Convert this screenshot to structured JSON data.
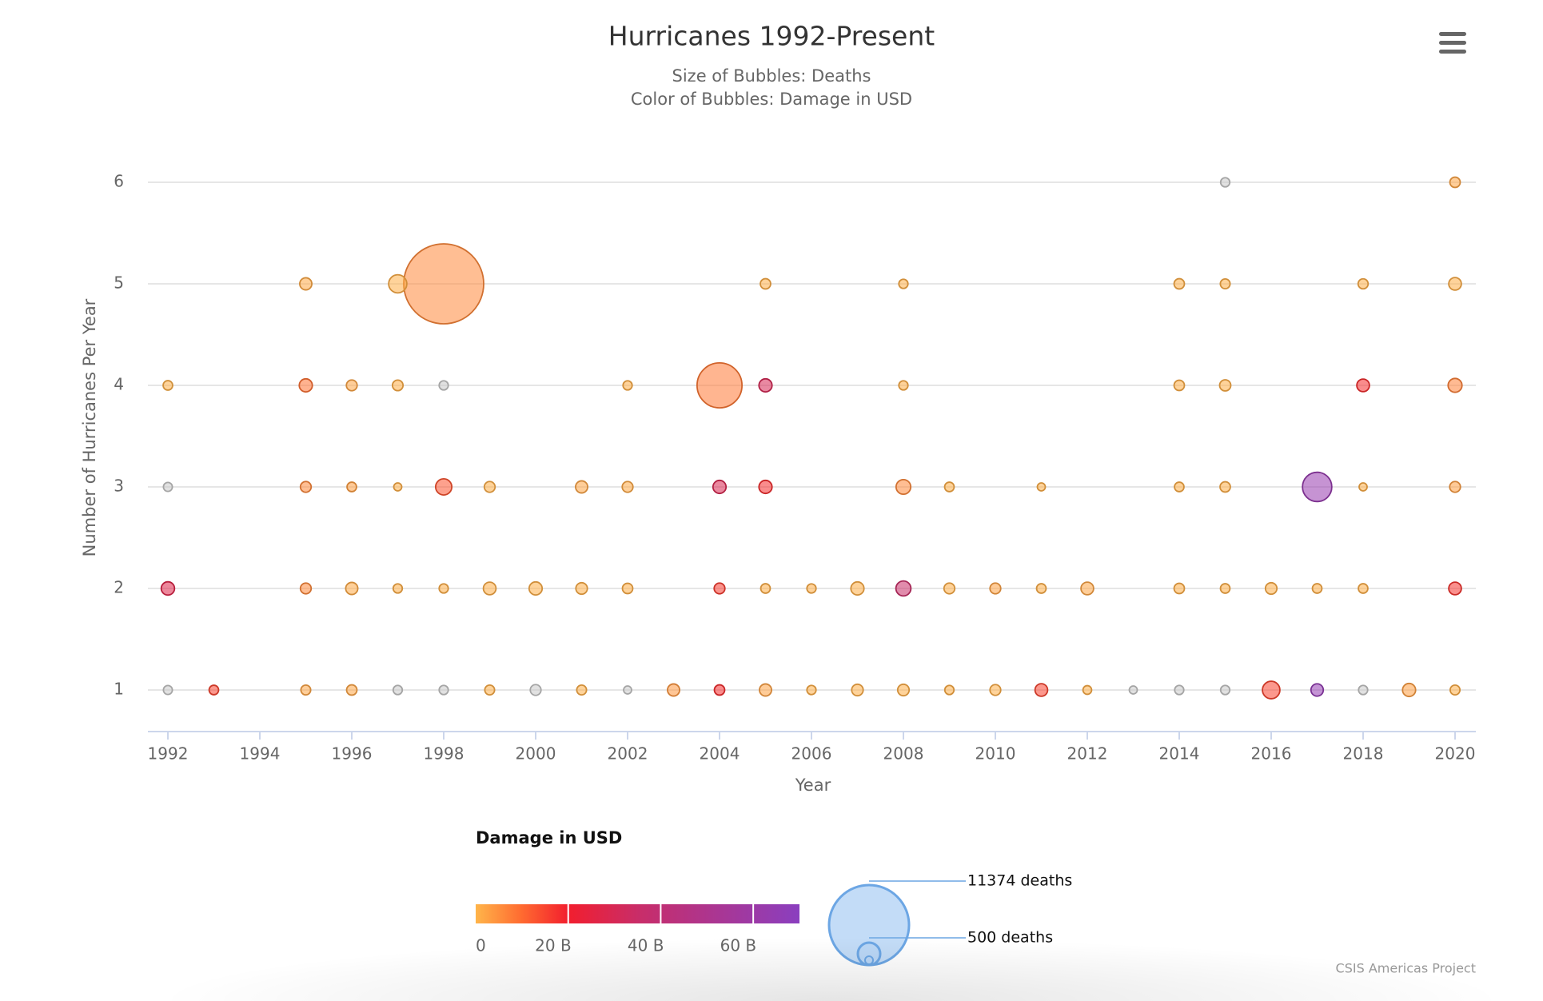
{
  "chart_data": {
    "type": "scatter",
    "title": "Hurricanes 1992-Present",
    "subtitle_lines": [
      "Size of Bubbles: Deaths",
      "Color of Bubbles: Damage in USD"
    ],
    "xlabel": "Year",
    "ylabel": "Number of Hurricanes Per Year",
    "xlim": [
      1992,
      2020
    ],
    "ylim": [
      0.6,
      6.2
    ],
    "x_ticks": [
      1992,
      1994,
      1996,
      1998,
      2000,
      2002,
      2004,
      2006,
      2008,
      2010,
      2012,
      2014,
      2016,
      2018,
      2020
    ],
    "y_ticks": [
      1,
      2,
      3,
      4,
      5,
      6
    ],
    "grid": true,
    "size_encodes": "Deaths",
    "color_encodes": "Damage in USD",
    "points": [
      {
        "x": 1992,
        "y": 1,
        "deaths": 5,
        "damage": null
      },
      {
        "x": 1992,
        "y": 2,
        "deaths": 65,
        "damage": 27
      },
      {
        "x": 1992,
        "y": 3,
        "deaths": 5,
        "damage": null
      },
      {
        "x": 1992,
        "y": 4,
        "deaths": 8,
        "damage": 0.5
      },
      {
        "x": 1993,
        "y": 1,
        "deaths": 8,
        "damage": 15
      },
      {
        "x": 1995,
        "y": 1,
        "deaths": 10,
        "damage": 2
      },
      {
        "x": 1995,
        "y": 2,
        "deaths": 20,
        "damage": 6
      },
      {
        "x": 1995,
        "y": 3,
        "deaths": 20,
        "damage": 6
      },
      {
        "x": 1995,
        "y": 4,
        "deaths": 60,
        "damage": 9
      },
      {
        "x": 1995,
        "y": 5,
        "deaths": 40,
        "damage": 1.5
      },
      {
        "x": 1996,
        "y": 1,
        "deaths": 15,
        "damage": 2
      },
      {
        "x": 1996,
        "y": 2,
        "deaths": 40,
        "damage": 1.5
      },
      {
        "x": 1996,
        "y": 3,
        "deaths": 8,
        "damage": 3
      },
      {
        "x": 1996,
        "y": 4,
        "deaths": 20,
        "damage": 2
      },
      {
        "x": 1997,
        "y": 1,
        "deaths": 6,
        "damage": null
      },
      {
        "x": 1997,
        "y": 2,
        "deaths": 6,
        "damage": 1
      },
      {
        "x": 1997,
        "y": 3,
        "deaths": 3,
        "damage": 1
      },
      {
        "x": 1997,
        "y": 4,
        "deaths": 18,
        "damage": 1
      },
      {
        "x": 1997,
        "y": 5,
        "deaths": 230,
        "damage": 1
      },
      {
        "x": 1998,
        "y": 1,
        "deaths": 6,
        "damage": null
      },
      {
        "x": 1998,
        "y": 2,
        "deaths": 6,
        "damage": 1
      },
      {
        "x": 1998,
        "y": 3,
        "deaths": 150,
        "damage": 13
      },
      {
        "x": 1998,
        "y": 4,
        "deaths": 6,
        "damage": null
      },
      {
        "x": 1998,
        "y": 5,
        "deaths": 11374,
        "damage": 6
      },
      {
        "x": 1999,
        "y": 1,
        "deaths": 10,
        "damage": 1
      },
      {
        "x": 1999,
        "y": 2,
        "deaths": 50,
        "damage": 1
      },
      {
        "x": 1999,
        "y": 3,
        "deaths": 20,
        "damage": 1
      },
      {
        "x": 2000,
        "y": 1,
        "deaths": 20,
        "damage": null
      },
      {
        "x": 2000,
        "y": 2,
        "deaths": 60,
        "damage": 1
      },
      {
        "x": 2001,
        "y": 1,
        "deaths": 10,
        "damage": 1
      },
      {
        "x": 2001,
        "y": 2,
        "deaths": 30,
        "damage": 1
      },
      {
        "x": 2001,
        "y": 3,
        "deaths": 40,
        "damage": 2
      },
      {
        "x": 2002,
        "y": 1,
        "deaths": 3,
        "damage": null
      },
      {
        "x": 2002,
        "y": 2,
        "deaths": 15,
        "damage": 1
      },
      {
        "x": 2002,
        "y": 3,
        "deaths": 20,
        "damage": 1.5
      },
      {
        "x": 2002,
        "y": 4,
        "deaths": 6,
        "damage": 1
      },
      {
        "x": 2003,
        "y": 1,
        "deaths": 40,
        "damage": 4
      },
      {
        "x": 2004,
        "y": 1,
        "deaths": 15,
        "damage": 18
      },
      {
        "x": 2004,
        "y": 2,
        "deaths": 20,
        "damage": 16
      },
      {
        "x": 2004,
        "y": 3,
        "deaths": 60,
        "damage": 29
      },
      {
        "x": 2004,
        "y": 4,
        "deaths": 3000,
        "damage": 8
      },
      {
        "x": 2005,
        "y": 1,
        "deaths": 40,
        "damage": 2.5
      },
      {
        "x": 2005,
        "y": 2,
        "deaths": 8,
        "damage": 1
      },
      {
        "x": 2005,
        "y": 3,
        "deaths": 60,
        "damage": 18
      },
      {
        "x": 2005,
        "y": 4,
        "deaths": 60,
        "damage": 30
      },
      {
        "x": 2005,
        "y": 5,
        "deaths": 15,
        "damage": 1
      },
      {
        "x": 2006,
        "y": 1,
        "deaths": 6,
        "damage": 1
      },
      {
        "x": 2006,
        "y": 2,
        "deaths": 6,
        "damage": 1
      },
      {
        "x": 2007,
        "y": 1,
        "deaths": 30,
        "damage": 1
      },
      {
        "x": 2007,
        "y": 2,
        "deaths": 60,
        "damage": 1
      },
      {
        "x": 2008,
        "y": 1,
        "deaths": 30,
        "damage": 1
      },
      {
        "x": 2008,
        "y": 2,
        "deaths": 110,
        "damage": 35
      },
      {
        "x": 2008,
        "y": 3,
        "deaths": 100,
        "damage": 6
      },
      {
        "x": 2008,
        "y": 4,
        "deaths": 6,
        "damage": 1
      },
      {
        "x": 2008,
        "y": 5,
        "deaths": 6,
        "damage": 1
      },
      {
        "x": 2009,
        "y": 1,
        "deaths": 6,
        "damage": 1
      },
      {
        "x": 2009,
        "y": 2,
        "deaths": 20,
        "damage": 1
      },
      {
        "x": 2009,
        "y": 3,
        "deaths": 8,
        "damage": 1
      },
      {
        "x": 2010,
        "y": 1,
        "deaths": 20,
        "damage": 1
      },
      {
        "x": 2010,
        "y": 2,
        "deaths": 20,
        "damage": 2.5
      },
      {
        "x": 2011,
        "y": 1,
        "deaths": 50,
        "damage": 15
      },
      {
        "x": 2011,
        "y": 2,
        "deaths": 8,
        "damage": 1
      },
      {
        "x": 2011,
        "y": 3,
        "deaths": 3,
        "damage": 1
      },
      {
        "x": 2012,
        "y": 1,
        "deaths": 4,
        "damage": 1
      },
      {
        "x": 2012,
        "y": 2,
        "deaths": 50,
        "damage": 2
      },
      {
        "x": 2013,
        "y": 1,
        "deaths": 3,
        "damage": null
      },
      {
        "x": 2014,
        "y": 1,
        "deaths": 6,
        "damage": null
      },
      {
        "x": 2014,
        "y": 2,
        "deaths": 15,
        "damage": 1
      },
      {
        "x": 2014,
        "y": 3,
        "deaths": 8,
        "damage": 1
      },
      {
        "x": 2014,
        "y": 4,
        "deaths": 15,
        "damage": 1
      },
      {
        "x": 2014,
        "y": 5,
        "deaths": 15,
        "damage": 1
      },
      {
        "x": 2015,
        "y": 1,
        "deaths": 6,
        "damage": null
      },
      {
        "x": 2015,
        "y": 2,
        "deaths": 8,
        "damage": 1
      },
      {
        "x": 2015,
        "y": 3,
        "deaths": 15,
        "damage": 1
      },
      {
        "x": 2015,
        "y": 4,
        "deaths": 25,
        "damage": 1
      },
      {
        "x": 2015,
        "y": 5,
        "deaths": 10,
        "damage": 1
      },
      {
        "x": 2015,
        "y": 6,
        "deaths": 6,
        "damage": null
      },
      {
        "x": 2016,
        "y": 1,
        "deaths": 200,
        "damage": 15
      },
      {
        "x": 2016,
        "y": 2,
        "deaths": 30,
        "damage": 1
      },
      {
        "x": 2017,
        "y": 1,
        "deaths": 45,
        "damage": 65
      },
      {
        "x": 2017,
        "y": 2,
        "deaths": 8,
        "damage": 1
      },
      {
        "x": 2017,
        "y": 3,
        "deaths": 1000,
        "damage": 63
      },
      {
        "x": 2018,
        "y": 1,
        "deaths": 6,
        "damage": null
      },
      {
        "x": 2018,
        "y": 2,
        "deaths": 8,
        "damage": 1
      },
      {
        "x": 2018,
        "y": 3,
        "deaths": 3,
        "damage": 1
      },
      {
        "x": 2018,
        "y": 4,
        "deaths": 50,
        "damage": 18
      },
      {
        "x": 2018,
        "y": 5,
        "deaths": 12,
        "damage": 1
      },
      {
        "x": 2019,
        "y": 1,
        "deaths": 60,
        "damage": 3
      },
      {
        "x": 2020,
        "y": 1,
        "deaths": 10,
        "damage": 1
      },
      {
        "x": 2020,
        "y": 2,
        "deaths": 50,
        "damage": 17
      },
      {
        "x": 2020,
        "y": 3,
        "deaths": 20,
        "damage": 3
      },
      {
        "x": 2020,
        "y": 4,
        "deaths": 80,
        "damage": 7
      },
      {
        "x": 2020,
        "y": 5,
        "deaths": 50,
        "damage": 1
      },
      {
        "x": 2020,
        "y": 6,
        "deaths": 15,
        "damage": 2
      }
    ],
    "color_axis": {
      "title": "Damage in USD",
      "min": 0,
      "max": 70,
      "tick_values": [
        0,
        20,
        40,
        60
      ],
      "tick_labels": [
        "0",
        "20 B",
        "40 B",
        "60 B"
      ],
      "stops": [
        {
          "value": 0,
          "color": "#ffb54a"
        },
        {
          "value": 10,
          "color": "#ff6a30"
        },
        {
          "value": 20,
          "color": "#f21e2e"
        },
        {
          "value": 35,
          "color": "#c92d68"
        },
        {
          "value": 70,
          "color": "#8a3fbf"
        }
      ],
      "null_color": "#c9c9c9"
    },
    "size_legend": {
      "labels": [
        "11374 deaths",
        "500 deaths"
      ],
      "bubble_color": "#b9d6f6",
      "bubble_stroke": "#6ca6e4"
    },
    "credits": "CSIS Americas Project"
  },
  "menu_icon": "hamburger-menu-icon"
}
